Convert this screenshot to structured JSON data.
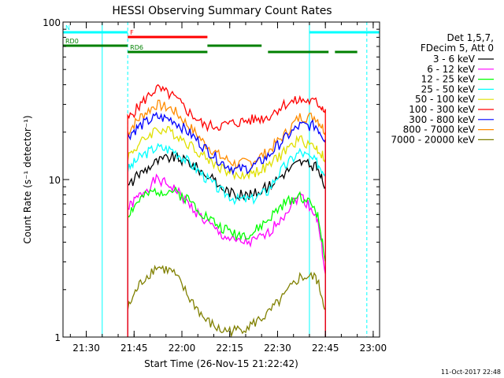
{
  "chart_data": {
    "type": "line",
    "title": "HESSI Observing Summary Count Rates",
    "xlabel": "Start Time (26-Nov-15 21:22:42)",
    "ylabel": "Count Rate (s⁻¹ detector⁻¹)",
    "y_scale": "log",
    "ylim": [
      1,
      100
    ],
    "xlim": [
      "21:22:42",
      "23:02:00"
    ],
    "x_ticks": [
      "21:30",
      "21:45",
      "22:00",
      "22:15",
      "22:30",
      "22:45",
      "23:00"
    ],
    "y_ticks": [
      "1",
      "10",
      "100"
    ],
    "grid": false,
    "legend_placement": "right",
    "legend_header": [
      "Det 1,5,7,",
      "FDecim 5, Att 0"
    ],
    "x": [
      "21:43",
      "21:47",
      "21:52",
      "21:57",
      "22:02",
      "22:07",
      "22:12",
      "22:17",
      "22:22",
      "22:27",
      "22:32",
      "22:37",
      "22:42",
      "22:45"
    ],
    "series": [
      {
        "name": "3 - 6 keV",
        "color": "#000000",
        "values": [
          9,
          11,
          13,
          14,
          13,
          11,
          9,
          8,
          8,
          9,
          11,
          13,
          12,
          9
        ]
      },
      {
        "name": "6 - 12 keV",
        "color": "#ff00ff",
        "values": [
          6.5,
          8,
          10,
          9,
          7,
          5.5,
          4.5,
          4,
          4,
          4.5,
          6,
          8,
          6,
          2.5
        ]
      },
      {
        "name": "12 - 25 keV",
        "color": "#00ff00",
        "values": [
          6,
          7.5,
          8.5,
          8.5,
          7.5,
          6,
          5,
          4.5,
          4.5,
          5.5,
          7,
          8,
          6.5,
          3
        ]
      },
      {
        "name": "25 - 50 keV",
        "color": "#00ffff",
        "values": [
          11.5,
          14,
          16,
          15.5,
          13,
          10.5,
          8.5,
          7.5,
          7.5,
          8.5,
          12,
          15,
          13,
          11
        ]
      },
      {
        "name": "50 - 100 keV",
        "color": "#e0e000",
        "values": [
          14,
          17,
          21,
          20,
          17,
          14,
          12,
          10.5,
          11,
          12,
          15,
          18,
          16,
          13.5
        ]
      },
      {
        "name": "100 - 300 keV",
        "color": "#ff0000",
        "values": [
          24,
          30,
          38,
          34,
          27,
          22,
          22,
          23,
          24,
          25,
          30,
          32,
          31,
          28
        ]
      },
      {
        "name": "300 - 800 keV",
        "color": "#0000ff",
        "values": [
          19,
          22,
          25,
          24,
          20,
          16,
          13,
          11.5,
          12,
          14,
          18,
          22,
          22,
          18
        ]
      },
      {
        "name": "800 - 7000 keV",
        "color": "#ff8c00",
        "values": [
          20,
          25,
          30,
          28,
          22,
          17,
          14,
          12.5,
          13,
          15,
          19,
          25,
          25,
          20
        ]
      },
      {
        "name": "7000 - 20000 keV",
        "color": "#808000",
        "values": [
          1.5,
          2.2,
          2.8,
          2.6,
          1.8,
          1.3,
          1.1,
          1.1,
          1.2,
          1.4,
          1.8,
          2.4,
          2.4,
          1.5
        ]
      }
    ],
    "flags": [
      {
        "label": "N",
        "color": "#00ffff",
        "start": "21:22:42",
        "end": "21:43:00"
      },
      {
        "label": "",
        "color": "#00ffff",
        "start": "22:40:00",
        "end": "23:02:00"
      },
      {
        "label": "F",
        "color": "#ff0000",
        "start": "21:43:00",
        "end": "22:08:00"
      },
      {
        "label": "RD0",
        "color": "#008000",
        "start": "21:22:42",
        "end": "21:43:00"
      },
      {
        "label": "",
        "color": "#008000",
        "start": "22:08:00",
        "end": "22:25:00"
      },
      {
        "label": "",
        "color": "#008000",
        "start": "22:48:00",
        "end": "22:55:00"
      },
      {
        "label": "RD6",
        "color": "#008000",
        "start": "21:43:00",
        "end": "22:08:00"
      },
      {
        "label": "",
        "color": "#008000",
        "start": "22:27:00",
        "end": "22:46:00"
      }
    ],
    "vertical_markers": [
      {
        "time": "21:35",
        "color": "#00ffff",
        "style": "solid"
      },
      {
        "time": "21:43",
        "color": "#00ffff",
        "style": "dashed"
      },
      {
        "time": "22:40",
        "color": "#00ffff",
        "style": "solid"
      },
      {
        "time": "22:58",
        "color": "#00ffff",
        "style": "dashed"
      }
    ],
    "timestamp": "11-Oct-2017 22:48"
  }
}
